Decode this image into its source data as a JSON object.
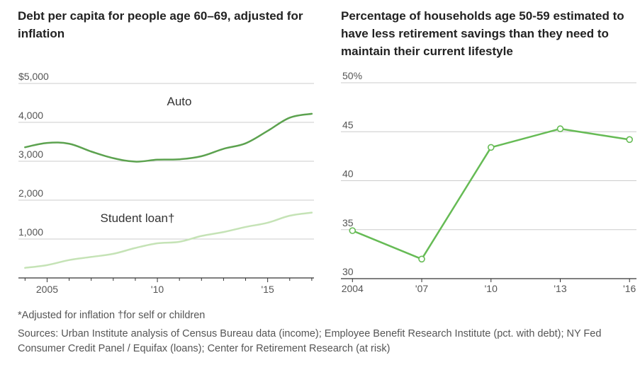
{
  "colors": {
    "dark_line": "#5ca24f",
    "light_line": "#c5e3b6",
    "right_line": "#66bb55",
    "grid": "#cccccc",
    "axis": "#333333"
  },
  "chart_data": [
    {
      "type": "line",
      "title": "Debt per capita for people age 60–69, adjusted for inflation",
      "x": [
        2004,
        2005,
        2006,
        2007,
        2008,
        2009,
        2010,
        2011,
        2012,
        2013,
        2014,
        2015,
        2016,
        2017
      ],
      "xlim": [
        2003.7,
        2017.1
      ],
      "xticks": [
        2005,
        2010,
        2015
      ],
      "xtick_labels": [
        "2005",
        "'10",
        "'15"
      ],
      "ylim": [
        0,
        5000
      ],
      "yticks": [
        1000,
        2000,
        3000,
        4000,
        5000
      ],
      "ytick_labels": [
        "1,000",
        "2,000",
        "3,000",
        "4,000",
        "$5,000"
      ],
      "grid": true,
      "series": [
        {
          "name": "Auto",
          "values": [
            3360,
            3470,
            3450,
            3250,
            3080,
            2990,
            3040,
            3050,
            3130,
            3320,
            3460,
            3780,
            4120,
            4220
          ]
        },
        {
          "name": "Student loan†",
          "values": [
            260,
            330,
            460,
            540,
            620,
            770,
            890,
            930,
            1080,
            1180,
            1310,
            1420,
            1600,
            1680
          ]
        }
      ]
    },
    {
      "type": "line",
      "title": "Percentage of households age 50-59 estimated to have less retirement savings than they need to maintain their current lifestyle",
      "x": [
        2004,
        2007,
        2010,
        2013,
        2016
      ],
      "xtick_labels": [
        "2004",
        "'07",
        "'10",
        "'13",
        "'16"
      ],
      "xlim": [
        2003.5,
        2016.3
      ],
      "ylim": [
        30,
        50
      ],
      "yticks": [
        30,
        35,
        40,
        45,
        50
      ],
      "ytick_labels": [
        "30",
        "35",
        "40",
        "45",
        "50%"
      ],
      "grid": true,
      "markers": true,
      "series": [
        {
          "values": [
            34.9,
            32.0,
            43.4,
            45.3,
            44.2
          ]
        }
      ]
    }
  ],
  "footnote": "*Adjusted for inflation  †for self or children",
  "sources": "Sources: Urban Institute analysis of Census Bureau data (income); Employee Benefit Research Institute (pct. with debt); NY Fed Consumer Credit Panel / Equifax (loans);  Center for Retirement Research (at risk)"
}
